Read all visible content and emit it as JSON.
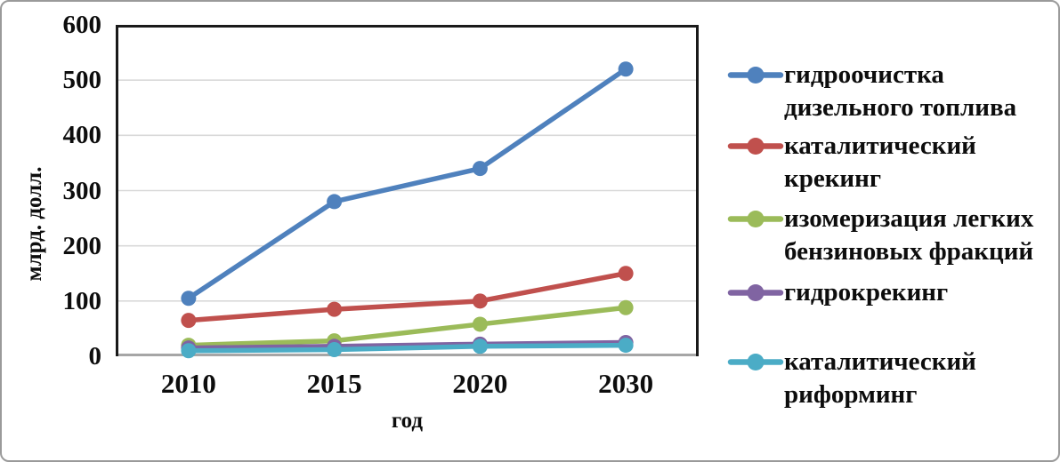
{
  "chart_data": {
    "type": "line",
    "title": "",
    "x_axis_label": "год",
    "y_axis_label": "млрд. долл.",
    "categories": [
      "2010",
      "2015",
      "2020",
      "2030"
    ],
    "ylim": [
      0,
      600
    ],
    "yticks": [
      0,
      100,
      200,
      300,
      400,
      500,
      600
    ],
    "grid": true,
    "grid_color": "#D9D9D9",
    "plot_border_color": "#1a1a1a",
    "x_axis_line_color": "#A6A6A6",
    "legend_position": "right",
    "series": [
      {
        "id": "hydrotreating-diesel",
        "name": "гидроочистка дизельного топлива",
        "legend_lines": [
          "гидроочистка",
          "дизельного топлива"
        ],
        "color": "#4F81BD",
        "values": [
          105,
          280,
          340,
          520
        ]
      },
      {
        "id": "catalytic-cracking",
        "name": "каталитический крекинг",
        "legend_lines": [
          "каталитический",
          "крекинг"
        ],
        "color": "#C0504D",
        "values": [
          65,
          85,
          100,
          150
        ]
      },
      {
        "id": "isomerization-light-naphtha",
        "name": "изомеризация легких бензиновых фракций",
        "legend_lines": [
          "изомеризация легких",
          "бензиновых фракций"
        ],
        "color": "#9BBB59",
        "values": [
          20,
          28,
          58,
          88
        ]
      },
      {
        "id": "hydrocracking",
        "name": "гидрокрекинг",
        "legend_lines": [
          "гидрокрекинг"
        ],
        "color": "#8064A2",
        "values": [
          15,
          18,
          22,
          25
        ]
      },
      {
        "id": "catalytic-reforming",
        "name": "каталитический риформинг",
        "legend_lines": [
          "каталитический",
          "риформинг"
        ],
        "color": "#4BACC6",
        "values": [
          10,
          12,
          18,
          20
        ]
      }
    ]
  }
}
